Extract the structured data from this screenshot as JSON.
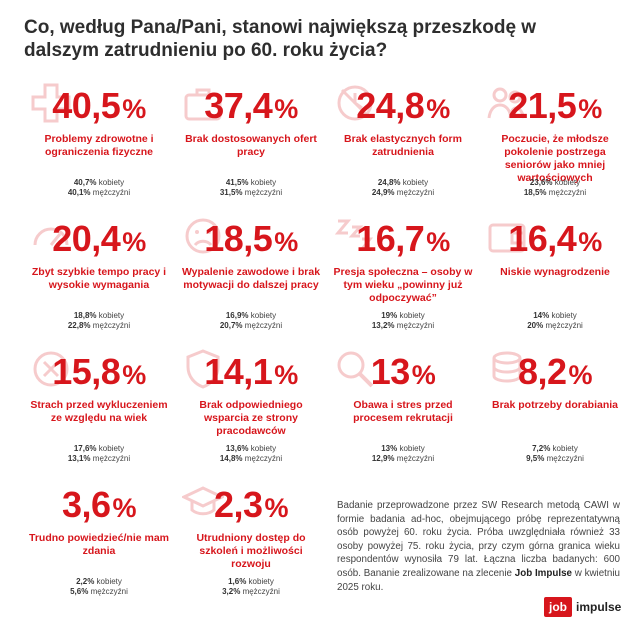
{
  "title": "Co, według Pana/Pani, stanowi największą przeszkodę w dalszym zatrudnieniu po 60. roku życia?",
  "percent_sign": "%",
  "items": [
    {
      "value": "40,5",
      "label": "Problemy zdrowotne i ograniczenia fizyczne",
      "women": "40,7%",
      "men": "40,1%",
      "icon": "medical-cross-icon"
    },
    {
      "value": "37,4",
      "label": "Brak dostosowanych ofert pracy",
      "women": "41,5%",
      "men": "31,5%",
      "icon": "briefcase-icon"
    },
    {
      "value": "24,8",
      "label": "Brak elastycznych form zatrudnienia",
      "women": "24,8%",
      "men": "24,9%",
      "icon": "no-clock-icon"
    },
    {
      "value": "21,5",
      "label": "Poczucie, że młodsze pokolenie postrzega seniorów jako mniej wartościowych",
      "women": "23,6%",
      "men": "18,5%",
      "icon": "people-icon"
    },
    {
      "value": "20,4",
      "label": "Zbyt szybkie tempo pracy i wysokie wymagania",
      "women": "18,8%",
      "men": "22,8%",
      "icon": "speedometer-icon"
    },
    {
      "value": "18,5",
      "label": "Wypalenie zawodowe i brak motywacji do dalszej pracy",
      "women": "16,9%",
      "men": "20,7%",
      "icon": "sad-face-icon"
    },
    {
      "value": "16,7",
      "label": "Presja społeczna – osoby w tym wieku „powinny już odpoczywać”",
      "women": "19%",
      "men": "13,2%",
      "icon": "sleep-icon"
    },
    {
      "value": "16,4",
      "label": "Niskie wynagrodzenie",
      "women": "14%",
      "men": "20%",
      "icon": "wallet-icon"
    },
    {
      "value": "15,8",
      "label": "Strach przed wykluczeniem ze względu na wiek",
      "women": "17,6%",
      "men": "13,1%",
      "icon": "excluded-user-icon"
    },
    {
      "value": "14,1",
      "label": "Brak odpowiedniego wsparcia ze strony pracodawców",
      "women": "13,6%",
      "men": "14,8%",
      "icon": "shield-icon"
    },
    {
      "value": "13",
      "label": "Obawa i stres przed procesem rekrutacji",
      "women": "13%",
      "men": "12,9%",
      "icon": "magnifier-icon"
    },
    {
      "value": "8,2",
      "label": "Brak potrzeby dorabiania",
      "women": "7,2%",
      "men": "9,5%",
      "icon": "coins-icon"
    },
    {
      "value": "3,6",
      "label": "Trudno powiedzieć/nie mam zdania",
      "women": "2,2%",
      "men": "5,6%",
      "icon": ""
    },
    {
      "value": "2,3",
      "label": "Utrudniony dostęp do szkoleń i możliwości rozwoju",
      "women": "1,6%",
      "men": "3,2%",
      "icon": "graduation-cap-icon"
    }
  ],
  "women_suffix": "kobiety",
  "men_suffix": "mężczyźni",
  "note": {
    "text": "Badanie przeprowadzone przez SW Research metodą CAWI w formie badania ad-hoc, obejmującego próbę reprezentatywną osób powyżej 60. roku życia. Próba uwzględniała również 33 osoby powyżej 75. roku życia, przy czym górna granica wieku respondentów wynosiła 79 lat. Łączna liczba badanych: 600 osób. Bananie zrealizowane na zlecenie ",
    "brand": "Job Impulse",
    "tail": " w kwietniu 2025 roku."
  },
  "logo": {
    "job": "job",
    "impulse": "impulse"
  },
  "colors": {
    "accent": "#d7161c",
    "text": "#2e2e2e"
  }
}
